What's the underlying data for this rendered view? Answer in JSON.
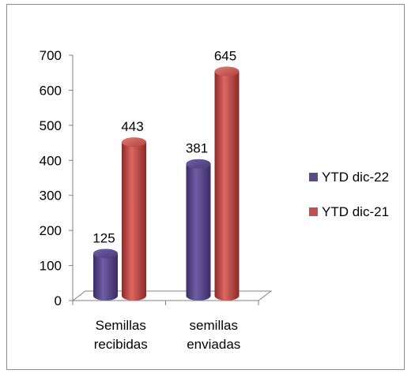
{
  "chart_data": {
    "type": "bar",
    "style": "3d-cylinder",
    "categories": [
      [
        "Semillas",
        "recibidas"
      ],
      [
        "semillas",
        "enviadas"
      ]
    ],
    "series": [
      {
        "name": "YTD dic-22",
        "values": [
          125,
          381
        ],
        "color": "#5b4a8c"
      },
      {
        "name": "YTD dic-21",
        "values": [
          443,
          645
        ],
        "color": "#c0504d"
      }
    ],
    "ylim": [
      0,
      700
    ],
    "yticks": [
      "0",
      "100",
      "200",
      "300",
      "400",
      "500",
      "600",
      "700"
    ],
    "legend_position": "right",
    "grid": false,
    "data_labels": true
  }
}
